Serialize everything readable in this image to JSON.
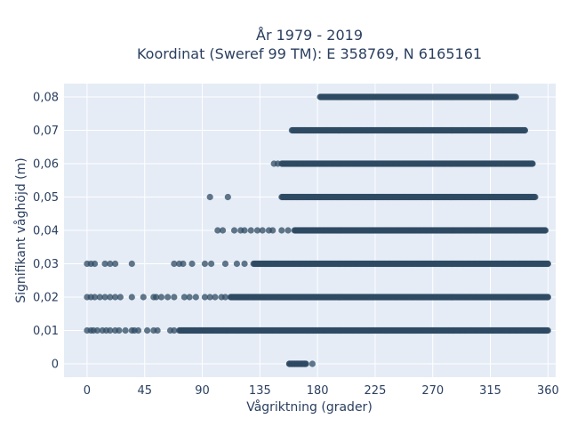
{
  "chart_data": {
    "type": "scatter",
    "title_lines": [
      "År 1979 - 2019",
      "Koordinat (Sweref 99 TM): E 358769, N 6165161"
    ],
    "xlabel": "Vågriktning (grader)",
    "ylabel": "Signifikant våghöjd (m)",
    "xlim": [
      -18,
      366
    ],
    "ylim": [
      -0.004,
      0.084
    ],
    "x_ticks": [
      0,
      45,
      90,
      135,
      180,
      225,
      270,
      315,
      360
    ],
    "x_tick_labels": [
      "0",
      "45",
      "90",
      "135",
      "180",
      "225",
      "270",
      "315",
      "360"
    ],
    "y_ticks": [
      0,
      0.01,
      0.02,
      0.03,
      0.04,
      0.05,
      0.06,
      0.07,
      0.08
    ],
    "y_tick_labels": [
      "0",
      "0,01",
      "0,02",
      "0,03",
      "0,04",
      "0,05",
      "0,06",
      "0,07",
      "0,08"
    ],
    "grid": true,
    "colors": {
      "marker": "#2f4b63",
      "plot_bg": "#e5ecf6",
      "grid": "#ffffff",
      "text": "#2a3f5f"
    },
    "series": [
      {
        "levels": [
          {
            "y": 0.0,
            "dense": [
              [
                158,
                171
              ]
            ],
            "sparse": [
              158,
              160,
              162,
              164,
              166,
              168,
              170,
              176
            ]
          },
          {
            "y": 0.01,
            "dense": [
              [
                72,
                360
              ]
            ],
            "sparse": [
              0,
              3,
              5,
              8,
              12,
              15,
              18,
              22,
              25,
              30,
              35,
              37,
              40,
              47,
              52,
              55,
              65,
              68
            ]
          },
          {
            "y": 0.02,
            "dense": [
              [
                112,
                360
              ]
            ],
            "sparse": [
              0,
              3,
              6,
              10,
              14,
              18,
              22,
              26,
              35,
              44,
              52,
              54,
              58,
              63,
              68,
              76,
              80,
              85,
              92,
              96,
              100,
              105,
              108
            ]
          },
          {
            "y": 0.03,
            "dense": [
              [
                130,
                360
              ]
            ],
            "sparse": [
              0,
              3,
              6,
              14,
              18,
              22,
              35,
              68,
              72,
              75,
              82,
              92,
              97,
              108,
              117,
              123
            ]
          },
          {
            "y": 0.04,
            "dense": [
              [
                162,
                358
              ]
            ],
            "sparse": [
              102,
              106,
              115,
              120,
              123,
              128,
              133,
              137,
              142,
              145,
              152,
              157
            ]
          },
          {
            "y": 0.05,
            "dense": [
              [
                152,
                350
              ]
            ],
            "sparse": [
              96,
              110
            ]
          },
          {
            "y": 0.06,
            "dense": [
              [
                152,
                348
              ]
            ],
            "sparse": [
              146,
              149
            ]
          },
          {
            "y": 0.07,
            "dense": [
              [
                160,
                342
              ]
            ],
            "sparse": []
          },
          {
            "y": 0.08,
            "dense": [
              [
                182,
                335
              ]
            ],
            "sparse": []
          }
        ]
      }
    ]
  }
}
